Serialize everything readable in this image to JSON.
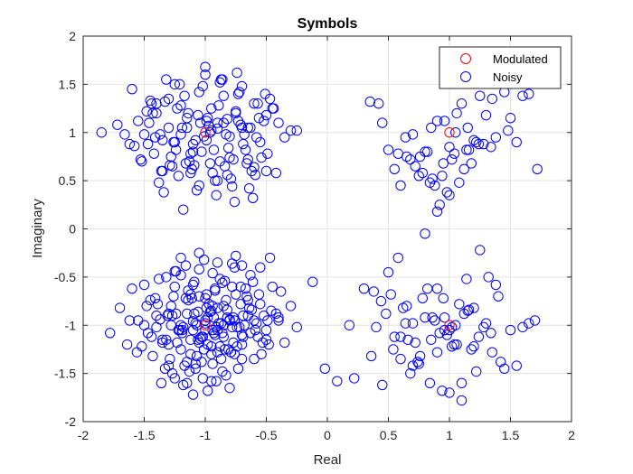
{
  "chart_data": {
    "type": "scatter",
    "title": "Symbols",
    "xlabel": "Real",
    "ylabel": "Imaginary",
    "xlim": [
      -2,
      2
    ],
    "ylim": [
      -2,
      2
    ],
    "xticks": [
      "-2",
      "-1.5",
      "-1",
      "-0.5",
      "0",
      "0.5",
      "1",
      "1.5",
      "2"
    ],
    "yticks": [
      "-2",
      "-1.5",
      "-1",
      "-0.5",
      "0",
      "0.5",
      "1",
      "1.5",
      "2"
    ],
    "grid": true,
    "legend_position": "top-right",
    "series": [
      {
        "name": "Modulated",
        "color": "#ff0000",
        "marker": "open-circle",
        "x": [
          -1,
          1,
          -1,
          1
        ],
        "y": [
          1,
          1,
          -1,
          -1
        ]
      },
      {
        "name": "Noisy",
        "color": "#0000ff",
        "marker": "open-circle",
        "x": [
          -1.85,
          -1.72,
          -1.6,
          -1.55,
          -1.5,
          -1.45,
          -1.4,
          -1.35,
          -1.3,
          -1.25,
          -1.2,
          -1.15,
          -1.1,
          -1.05,
          -1.0,
          -0.95,
          -0.9,
          -0.85,
          -0.8,
          -0.75,
          -0.7,
          -0.65,
          -0.6,
          -0.55,
          -0.5,
          -0.45,
          -0.4,
          -0.35,
          -0.3,
          -0.25,
          -1.62,
          -1.53,
          -1.44,
          -1.36,
          -1.28,
          -1.19,
          -1.11,
          -1.03,
          -0.96,
          -0.88,
          -0.81,
          -0.73,
          -0.66,
          -0.58,
          -0.49,
          -0.42,
          -1.48,
          -1.32,
          -1.17,
          -1.02,
          -0.87,
          -0.72,
          -0.57,
          -0.44,
          -1.38,
          -1.22,
          -1.07,
          -0.92,
          -0.77,
          -0.62,
          -1.58,
          -1.41,
          -1.26,
          -1.12,
          -0.99,
          -0.84,
          -0.69,
          -0.54,
          -1.46,
          -1.33,
          -1.14,
          -0.97,
          -0.82,
          -0.63,
          -1.24,
          -1.09,
          -0.93,
          -0.79,
          -1.0,
          -0.86,
          -0.74,
          -1.18,
          -1.05,
          -0.91,
          -0.68,
          -1.52,
          -1.35,
          -0.59,
          -0.47,
          -1.3,
          -1.15,
          -0.95,
          -0.8,
          -0.6,
          -1.42,
          -1.27,
          -1.08,
          -0.89,
          -0.71,
          -0.52,
          -1.37,
          -1.21,
          -1.04,
          -0.9,
          -0.76,
          -0.64,
          -1.66,
          -1.47,
          -1.29,
          -1.13,
          -0.98,
          -0.83,
          -0.67,
          -0.51,
          -1.43,
          -1.23,
          -1.01,
          -0.85,
          -0.7,
          -0.56,
          -1.34,
          -1.16,
          -0.94,
          -0.78,
          -0.61,
          -1.2,
          -1.06,
          -0.88,
          -0.73,
          -1.1,
          -0.96,
          -0.82,
          -1.25,
          -0.99,
          -0.75,
          -1.4,
          -1.12,
          -0.9,
          -0.65,
          -0.5,
          0.35,
          0.42,
          0.45,
          0.5,
          0.55,
          0.6,
          0.65,
          0.7,
          0.75,
          0.8,
          0.85,
          0.9,
          0.95,
          1.0,
          1.05,
          1.1,
          1.15,
          1.2,
          1.25,
          1.3,
          1.35,
          1.4,
          1.45,
          1.5,
          1.55,
          1.6,
          1.65,
          1.72,
          0.58,
          0.68,
          0.78,
          0.88,
          0.98,
          1.08,
          1.18,
          1.28,
          1.38,
          1.48,
          0.72,
          0.82,
          0.92,
          1.02,
          1.12,
          1.22,
          0.86,
          0.96,
          1.06,
          1.16,
          0.64,
          0.76,
          0.94,
          1.04,
          1.14,
          1.24,
          1.34,
          0.84,
          1.0,
          0.9,
          -1.78,
          -1.7,
          -1.62,
          -1.56,
          -1.5,
          -1.45,
          -1.4,
          -1.35,
          -1.3,
          -1.25,
          -1.2,
          -1.15,
          -1.1,
          -1.05,
          -1.0,
          -0.95,
          -0.9,
          -0.85,
          -0.8,
          -0.75,
          -0.7,
          -0.65,
          -0.6,
          -0.55,
          -0.5,
          -0.45,
          -0.4,
          -0.35,
          -0.3,
          -0.25,
          -1.6,
          -1.52,
          -1.44,
          -1.37,
          -1.29,
          -1.21,
          -1.13,
          -1.06,
          -0.98,
          -0.91,
          -0.83,
          -0.76,
          -0.68,
          -0.61,
          -0.53,
          -0.46,
          -0.38,
          -1.48,
          -1.4,
          -1.32,
          -1.24,
          -1.16,
          -1.08,
          -1.0,
          -0.92,
          -0.84,
          -0.76,
          -0.69,
          -0.62,
          -0.54,
          -1.64,
          -1.55,
          -1.47,
          -1.39,
          -1.31,
          -1.23,
          -1.14,
          -1.07,
          -0.99,
          -0.9,
          -0.82,
          -0.74,
          -0.66,
          -0.58,
          -0.5,
          -0.42,
          -1.43,
          -1.35,
          -1.27,
          -1.19,
          -1.11,
          -1.03,
          -0.95,
          -0.87,
          -0.79,
          -0.71,
          -0.63,
          -0.56,
          -0.48,
          -0.4,
          -1.33,
          -1.26,
          -1.18,
          -1.09,
          -1.01,
          -0.93,
          -0.86,
          -0.78,
          -0.7,
          -0.64,
          -0.57,
          -0.49,
          -1.38,
          -1.28,
          -1.2,
          -1.12,
          -1.04,
          -0.96,
          -0.88,
          -0.8,
          -0.72,
          -0.65,
          -0.59,
          -0.52,
          -1.25,
          -1.15,
          -1.05,
          -0.97,
          -0.89,
          -0.81,
          -1.3,
          -1.22,
          -1.14,
          -1.06,
          -0.98,
          -0.9,
          -0.82,
          -0.74,
          -0.67,
          -0.6,
          -1.17,
          -1.07,
          -0.99,
          -0.92,
          -0.85,
          -0.77,
          -0.69,
          -1.2,
          -1.1,
          -1.0,
          -0.92,
          -0.84,
          -0.76,
          -1.36,
          -1.27,
          -1.18,
          -1.08,
          -1.02,
          -0.94,
          -0.86,
          -1.5,
          -1.41,
          -1.32,
          -1.24,
          -1.16,
          -1.09,
          -1.01,
          -0.94,
          -0.86,
          -0.78,
          -0.71,
          -0.63,
          -0.55,
          -0.47,
          -1.12,
          -1.03,
          -0.95,
          -0.87,
          -0.79,
          -0.73,
          -1.28,
          -1.19,
          -1.1,
          -1.02,
          -0.94,
          -0.85,
          -0.77,
          -0.7,
          -1.0,
          -0.91,
          -1.2,
          -1.05,
          -0.9,
          -0.75,
          -1.15,
          -0.98,
          -0.83,
          -1.1,
          -0.95,
          -0.8,
          -1.25,
          -1.05,
          -0.88,
          -0.7,
          -1.3,
          -1.12,
          -0.94,
          -0.78,
          -1.08,
          -0.93,
          -0.12,
          -0.02,
          0.08,
          0.18,
          0.22,
          0.3,
          0.38,
          0.4,
          0.45,
          0.5,
          0.55,
          0.6,
          0.65,
          0.7,
          0.75,
          0.8,
          0.85,
          0.9,
          0.95,
          1.0,
          1.05,
          1.1,
          1.15,
          1.2,
          1.25,
          1.3,
          1.35,
          1.4,
          1.45,
          1.5,
          1.55,
          1.6,
          1.65,
          1.7,
          0.52,
          0.62,
          0.72,
          0.82,
          0.92,
          1.02,
          1.12,
          1.22,
          1.32,
          1.42,
          0.48,
          0.58,
          0.68,
          0.78,
          0.88,
          0.98,
          1.08,
          1.18,
          1.28,
          1.38,
          0.66,
          0.76,
          0.86,
          0.96,
          1.06,
          1.16,
          0.36,
          0.44,
          0.54,
          0.64,
          0.74,
          0.84,
          0.94,
          1.04,
          1.14,
          1.24,
          1.34,
          0.9,
          1.0,
          1.1,
          0.8,
          0.7,
          1.2,
          0.6,
          0.96,
          1.02
        ],
        "y": [
          1.0,
          1.08,
          1.45,
          1.12,
          0.98,
          1.33,
          1.2,
          0.92,
          1.05,
          1.5,
          1.28,
          1.15,
          0.88,
          1.42,
          1.6,
          1.25,
          1.1,
          1.38,
          0.96,
          1.2,
          1.48,
          1.05,
          1.3,
          0.9,
          1.18,
          1.25,
          1.1,
          0.95,
          1.02,
          1.02,
          0.88,
          0.72,
          1.3,
          0.6,
          0.75,
          1.05,
          0.62,
          0.8,
          1.0,
          0.7,
          0.84,
          1.12,
          0.68,
          0.95,
          0.78,
          0.58,
          1.22,
          1.55,
          1.38,
          1.48,
          1.55,
          1.42,
          1.3,
          1.25,
          0.48,
          0.55,
          0.4,
          0.5,
          0.72,
          0.6,
          0.86,
          0.95,
          0.9,
          0.78,
          0.92,
          0.65,
          0.88,
          0.74,
          1.1,
          1.32,
          1.2,
          1.07,
          1.14,
          1.05,
          0.82,
          0.66,
          0.82,
          0.52,
          1.68,
          1.55,
          1.62,
          0.2,
          0.45,
          0.35,
          0.98,
          0.7,
          0.6,
          0.56,
          1.35,
          1.35,
          1.05,
          1.02,
          0.74,
          0.64,
          0.78,
          0.65,
          0.92,
          1.28,
          1.08,
          1.12,
          0.98,
          1.5,
          1.1,
          0.5,
          0.28,
          0.42,
          0.98,
          0.88,
          0.66,
          0.7,
          1.15,
          0.98,
          0.82,
          1.4,
          1.2,
          1.25,
          0.96,
          1.1,
          1.05,
          1.15,
          0.38,
          0.68,
          0.58,
          0.44,
          0.32,
          0.98,
          1.18,
          1.52,
          1.4,
          0.8,
          0.68,
          0.56,
          0.9,
          1.12,
          1.22,
          1.3,
          0.58,
          1.04,
          0.72,
          0.6,
          1.32,
          1.3,
          1.1,
          0.82,
          0.62,
          0.45,
          0.75,
          0.98,
          0.55,
          0.8,
          1.05,
          1.12,
          0.68,
          0.85,
          1.0,
          1.3,
          1.05,
          0.92,
          1.38,
          1.18,
          1.35,
          1.55,
          1.42,
          1.15,
          0.9,
          1.38,
          1.4,
          0.62,
          0.78,
          0.72,
          0.58,
          0.45,
          0.38,
          0.48,
          0.68,
          0.88,
          0.95,
          1.02,
          0.65,
          0.8,
          0.25,
          0.72,
          0.62,
          0.9,
          0.52,
          1.12,
          1.2,
          0.82,
          0.95,
          0.75,
          0.55,
          0.78,
          0.82,
          0.88,
          0.85,
          0.48,
          0.35,
          0.18,
          -1.08,
          -0.82,
          -0.95,
          -1.28,
          -1.0,
          -0.74,
          -0.9,
          -1.15,
          -1.42,
          -0.6,
          -1.25,
          -0.88,
          -1.05,
          -0.7,
          -0.98,
          -1.3,
          -0.82,
          -1.12,
          -0.95,
          -0.68,
          -1.2,
          -0.9,
          -1.35,
          -0.78,
          -1.05,
          -0.6,
          -0.92,
          -1.18,
          -0.8,
          -1.02,
          -0.62,
          -1.22,
          -1.12,
          -0.94,
          -1.35,
          -1.05,
          -1.48,
          -0.86,
          -1.2,
          -1.58,
          -0.74,
          -1.3,
          -1.0,
          -0.55,
          -1.18,
          -0.85,
          -0.65,
          -0.8,
          -1.02,
          -1.15,
          -0.88,
          -0.72,
          -1.4,
          -1.05,
          -0.62,
          -1.25,
          -0.95,
          -1.12,
          -0.84,
          -1.3,
          -1.2,
          -0.95,
          -1.08,
          -0.78,
          -0.9,
          -1.18,
          -0.64,
          -1.0,
          -0.82,
          -1.05,
          -0.92,
          -1.22,
          -0.7,
          -0.98,
          -1.15,
          -0.88,
          -1.32,
          -1.18,
          -0.9,
          -1.05,
          -0.72,
          -1.12,
          -0.85,
          -0.98,
          -1.28,
          -0.78,
          -1.08,
          -0.68,
          -1.2,
          -0.95,
          -1.45,
          -0.7,
          -1.02,
          -0.88,
          -1.25,
          -0.92,
          -1.08,
          -0.6,
          -1.35,
          -0.82,
          -1.12,
          -0.95,
          -0.52,
          -0.8,
          -1.0,
          -0.68,
          -1.14,
          -0.86,
          -1.22,
          -0.94,
          -1.02,
          -0.74,
          -1.05,
          -0.9,
          -1.55,
          -1.38,
          -1.18,
          -0.78,
          -0.98,
          -1.25,
          -0.88,
          -1.05,
          -0.74,
          -1.15,
          -0.92,
          -1.28,
          -0.84,
          -1.02,
          -0.62,
          -0.95,
          -1.42,
          -1.32,
          -0.68,
          -1.1,
          -0.8,
          -1.18,
          -0.9,
          -0.48,
          -0.58,
          -0.72,
          -0.64,
          -0.54,
          -0.4,
          -1.6,
          -1.5,
          -1.62,
          -1.45,
          -1.55,
          -1.4,
          -1.48,
          -0.58,
          -0.72,
          -0.5,
          -0.44,
          -0.38,
          -0.55,
          -0.32,
          -0.46,
          -0.56,
          -0.36,
          -0.6,
          -0.48,
          -0.4,
          -0.3,
          -1.3,
          -1.38,
          -1.22,
          -1.35,
          -1.28,
          -1.45,
          -1.0,
          -1.08,
          -0.96,
          -1.12,
          -1.05,
          -1.0,
          -0.92,
          -1.1,
          -0.95,
          -1.02,
          -0.3,
          -0.25,
          -0.35,
          -0.28,
          -1.6,
          -1.68,
          -1.52,
          -1.72,
          -1.58,
          -1.65,
          -0.44,
          -0.42,
          -0.52,
          -0.38,
          -1.2,
          -1.15,
          -0.8,
          -1.02,
          -0.98,
          -1.08,
          -0.55,
          -1.45,
          -1.58,
          -1.0,
          -1.55,
          -0.62,
          -0.65,
          -1.02,
          -1.62,
          -0.45,
          -1.12,
          -1.35,
          -0.8,
          -0.98,
          -1.4,
          -0.92,
          -1.15,
          -1.28,
          -0.72,
          -1.05,
          -1.0,
          -1.6,
          -0.85,
          -1.22,
          -0.22,
          -0.98,
          -1.28,
          -0.7,
          -1.45,
          -1.05,
          -1.42,
          -1.02,
          -0.98,
          -0.95,
          -0.68,
          -0.82,
          -1.18,
          -0.62,
          -1.08,
          -1.22,
          -0.88,
          -1.48,
          -0.5,
          -1.38,
          -0.88,
          -0.3,
          -1.5,
          -0.72,
          -0.95,
          -1.1,
          -0.78,
          -1.25,
          -1.02,
          -0.58,
          -1.15,
          -1.32,
          -0.92,
          -1.05,
          -1.2,
          -0.84,
          -1.32,
          -0.75,
          -1.25,
          -0.98,
          -1.38,
          -1.6,
          -1.68,
          -1.2,
          -0.52,
          -1.12,
          -1.08,
          -0.62,
          -1.7,
          -1.78,
          -0.05,
          -1.42,
          -0.82,
          -1.12,
          -0.92,
          -1.02
        ]
      }
    ]
  }
}
